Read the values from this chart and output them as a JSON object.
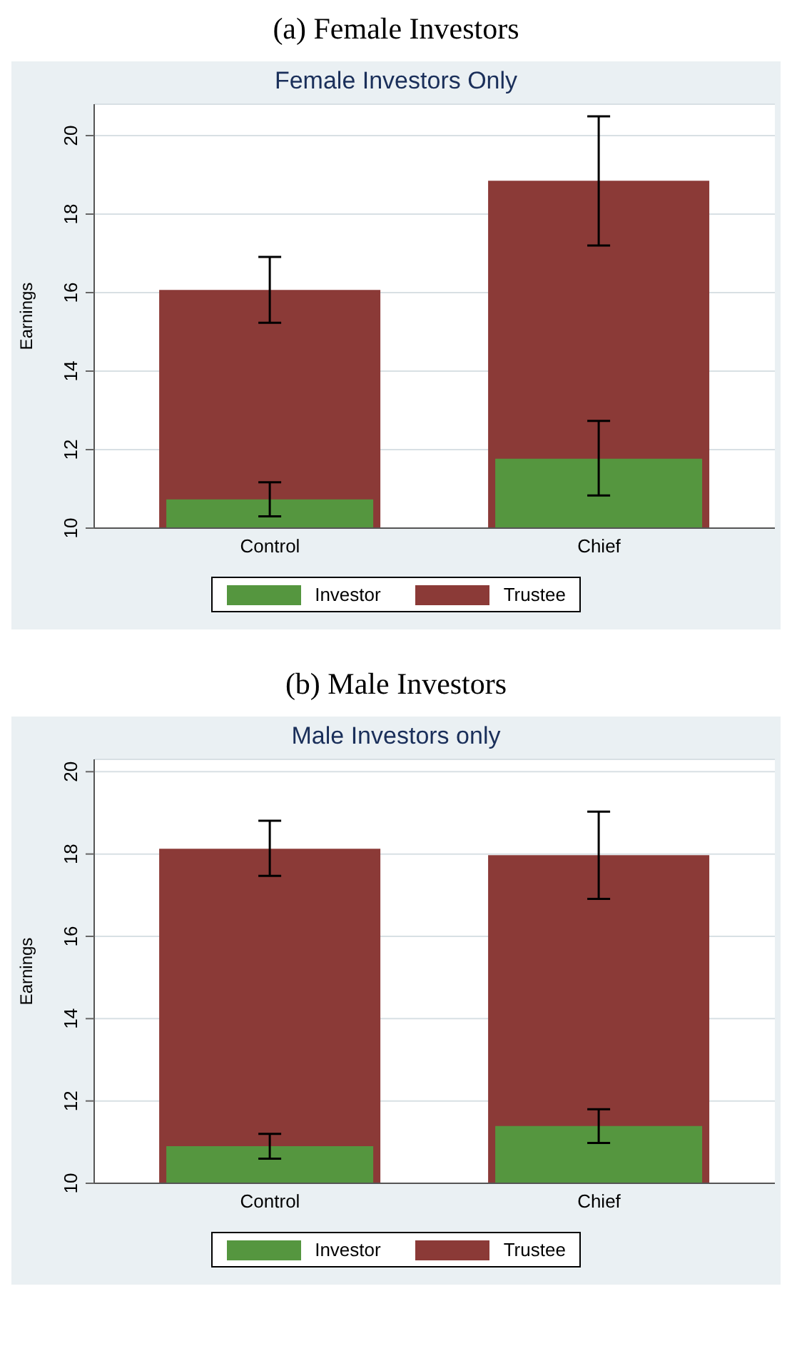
{
  "chart_data": [
    {
      "type": "bar",
      "title": "(a) Female Investors",
      "subtitle": "Female Investors Only",
      "ylabel": "Earnings",
      "categories": [
        "Control",
        "Chief"
      ],
      "series": [
        {
          "name": "Trustee",
          "color": "#8b3a37",
          "values": [
            16.07,
            18.85
          ],
          "errors": [
            [
              15.23,
              16.91
            ],
            [
              17.2,
              20.49
            ]
          ]
        },
        {
          "name": "Investor",
          "color": "#55963f",
          "values": [
            10.73,
            11.77
          ],
          "errors": [
            [
              10.3,
              11.17
            ],
            [
              10.83,
              12.73
            ]
          ]
        }
      ],
      "ylim": [
        10,
        20.8
      ],
      "yticks": [
        10,
        12,
        14,
        16,
        18,
        20
      ],
      "grid": "y",
      "legend": "bottom"
    },
    {
      "type": "bar",
      "title": "(b) Male Investors",
      "subtitle": "Male Investors only",
      "ylabel": "Earnings",
      "categories": [
        "Control",
        "Chief"
      ],
      "series": [
        {
          "name": "Trustee",
          "color": "#8b3a37",
          "values": [
            18.13,
            17.97
          ],
          "errors": [
            [
              17.47,
              18.81
            ],
            [
              16.91,
              19.03
            ]
          ]
        },
        {
          "name": "Investor",
          "color": "#55963f",
          "values": [
            10.9,
            11.39
          ],
          "errors": [
            [
              10.6,
              11.2
            ],
            [
              10.98,
              11.8
            ]
          ]
        }
      ],
      "ylim": [
        10,
        20.3
      ],
      "yticks": [
        10,
        12,
        14,
        16,
        18,
        20
      ],
      "grid": "y",
      "legend": "bottom"
    }
  ]
}
